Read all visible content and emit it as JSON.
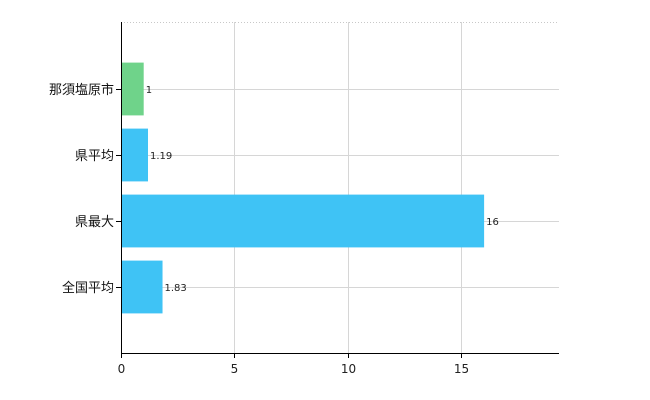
{
  "chart_data": {
    "type": "bar",
    "orientation": "horizontal",
    "categories": [
      "那須塩原市",
      "県平均",
      "県最大",
      "全国平均"
    ],
    "values": [
      1,
      1.19,
      16,
      1.83
    ],
    "data_labels": [
      "1",
      "1.19",
      "16",
      "1.83"
    ],
    "bar_colors": [
      "#6fd38a",
      "#3fc3f5",
      "#3fc3f5",
      "#3fc3f5"
    ],
    "xlim": [
      0,
      19.3
    ],
    "xticks": [
      0,
      5,
      10,
      15
    ],
    "xtick_labels": [
      "0",
      "5",
      "10",
      "15"
    ],
    "grid": true,
    "legend": "none"
  }
}
